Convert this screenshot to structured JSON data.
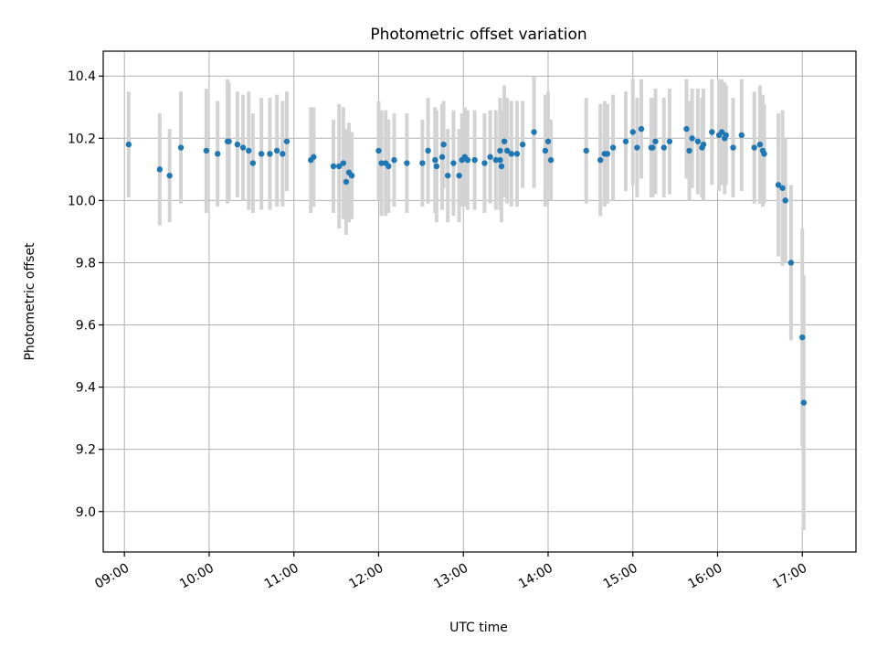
{
  "chart_data": {
    "type": "scatter",
    "title": "Photometric offset variation",
    "xlabel": "UTC time",
    "ylabel": "Photometric offset",
    "x_unit": "UTC time (HH:MM)",
    "xlim": [
      "08:45",
      "17:38"
    ],
    "ylim": [
      8.87,
      10.48
    ],
    "x_ticks": [
      "09:00",
      "10:00",
      "11:00",
      "12:00",
      "13:00",
      "14:00",
      "15:00",
      "16:00",
      "17:00"
    ],
    "y_ticks": [
      "9.0",
      "9.2",
      "9.4",
      "9.6",
      "9.8",
      "10.0",
      "10.2",
      "10.4"
    ],
    "grid": true,
    "legend": "none",
    "colors": {
      "point": "#1f77b4",
      "errorbar": "#d3d3d3"
    },
    "series": [
      {
        "x": [
          "09:03",
          "09:25",
          "09:32",
          "09:40",
          "09:58",
          "10:06",
          "10:13",
          "10:14",
          "10:20",
          "10:24",
          "10:28",
          "10:31",
          "10:37",
          "10:43",
          "10:48",
          "10:52",
          "10:55",
          "11:12",
          "11:14",
          "11:28",
          "11:32",
          "11:35",
          "11:37",
          "11:39",
          "11:41",
          "12:00",
          "12:02",
          "12:05",
          "12:07",
          "12:11",
          "12:20",
          "12:31",
          "12:35",
          "12:40",
          "12:41",
          "12:45",
          "12:46",
          "12:49",
          "12:53",
          "12:57",
          "12:59",
          "13:01",
          "13:03",
          "13:08",
          "13:15",
          "13:19",
          "13:23",
          "13:26",
          "13:26",
          "13:27",
          "13:29",
          "13:31",
          "13:34",
          "13:38",
          "13:42",
          "13:50",
          "13:58",
          "14:00",
          "14:02",
          "14:27",
          "14:37",
          "14:40",
          "14:42",
          "14:46",
          "14:55",
          "15:00",
          "15:03",
          "15:06",
          "15:13",
          "15:14",
          "15:16",
          "15:22",
          "15:26",
          "15:38",
          "15:40",
          "15:42",
          "15:46",
          "15:49",
          "15:50",
          "15:56",
          "16:01",
          "16:03",
          "16:05",
          "16:06",
          "16:11",
          "16:17",
          "16:26",
          "16:30",
          "16:32",
          "16:33",
          "16:43",
          "16:46",
          "16:48",
          "16:52",
          "17:00",
          "17:01"
        ],
        "y": [
          10.18,
          10.1,
          10.08,
          10.17,
          10.16,
          10.15,
          10.19,
          10.19,
          10.18,
          10.17,
          10.16,
          10.12,
          10.15,
          10.15,
          10.16,
          10.15,
          10.19,
          10.13,
          10.14,
          10.11,
          10.11,
          10.12,
          10.06,
          10.09,
          10.08,
          10.16,
          10.12,
          10.12,
          10.11,
          10.13,
          10.12,
          10.12,
          10.16,
          10.13,
          10.11,
          10.14,
          10.18,
          10.08,
          10.12,
          10.08,
          10.13,
          10.14,
          10.13,
          10.13,
          10.12,
          10.14,
          10.13,
          10.13,
          10.16,
          10.11,
          10.19,
          10.16,
          10.15,
          10.15,
          10.18,
          10.22,
          10.16,
          10.19,
          10.13,
          10.16,
          10.13,
          10.15,
          10.15,
          10.17,
          10.19,
          10.22,
          10.17,
          10.23,
          10.17,
          10.17,
          10.19,
          10.17,
          10.19,
          10.23,
          10.16,
          10.2,
          10.19,
          10.17,
          10.18,
          10.22,
          10.21,
          10.22,
          10.2,
          10.21,
          10.17,
          10.21,
          10.17,
          10.18,
          10.16,
          10.15,
          10.05,
          10.04,
          10.0,
          9.8,
          9.56,
          9.35
        ],
        "yerr": [
          0.17,
          0.18,
          0.15,
          0.18,
          0.2,
          0.17,
          0.2,
          0.19,
          0.17,
          0.17,
          0.19,
          0.16,
          0.18,
          0.18,
          0.18,
          0.17,
          0.16,
          0.17,
          0.16,
          0.15,
          0.2,
          0.18,
          0.17,
          0.16,
          0.14,
          0.16,
          0.17,
          0.17,
          0.15,
          0.15,
          0.16,
          0.14,
          0.17,
          0.17,
          0.18,
          0.17,
          0.14,
          0.15,
          0.17,
          0.15,
          0.15,
          0.16,
          0.16,
          0.16,
          0.16,
          0.15,
          0.16,
          0.16,
          0.17,
          0.18,
          0.18,
          0.17,
          0.17,
          0.17,
          0.14,
          0.18,
          0.18,
          0.16,
          0.13,
          0.17,
          0.18,
          0.17,
          0.16,
          0.17,
          0.16,
          0.17,
          0.16,
          0.16,
          0.16,
          0.16,
          0.17,
          0.16,
          0.17,
          0.16,
          0.16,
          0.16,
          0.17,
          0.16,
          0.18,
          0.17,
          0.18,
          0.17,
          0.18,
          0.16,
          0.16,
          0.18,
          0.18,
          0.19,
          0.18,
          0.16,
          0.23,
          0.25,
          0.2,
          0.25,
          0.35,
          0.41
        ]
      }
    ]
  }
}
